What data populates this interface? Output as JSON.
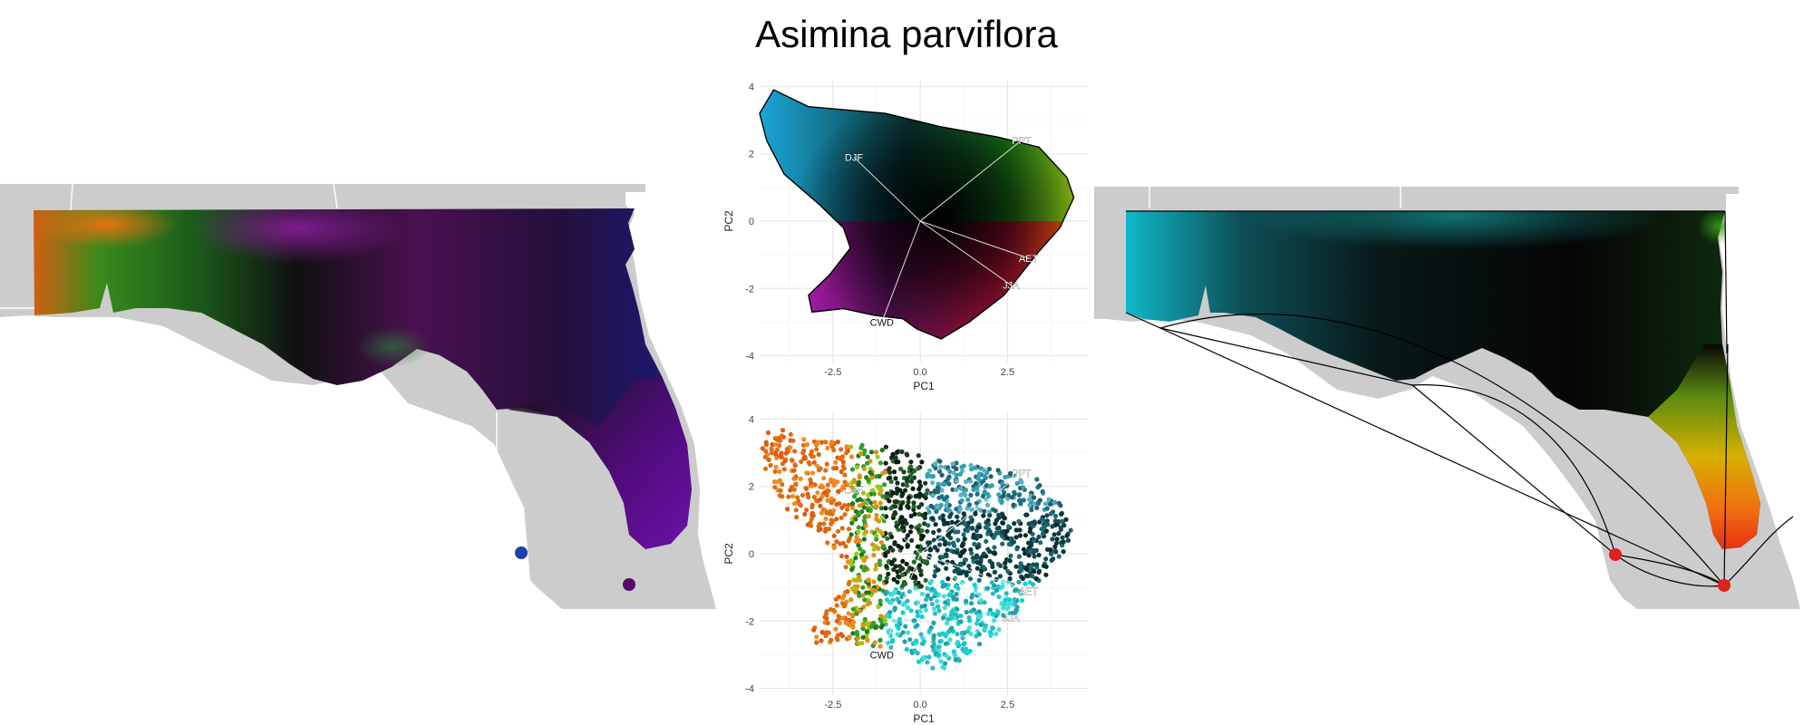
{
  "title": "Asimina parviflora",
  "colors": {
    "land": "#cccccc",
    "grid": "#e6e6e6",
    "background": "#ffffff"
  },
  "chart_data": [
    {
      "type": "scatter",
      "panel": "pca-continuous",
      "title": "",
      "xlabel": "PC1",
      "ylabel": "PC2",
      "xlim": [
        -4.6,
        4.8
      ],
      "ylim": [
        -4.2,
        4.2
      ],
      "x_ticks": [
        "-2.5",
        "0.0",
        "2.5"
      ],
      "x_tick_values": [
        -2.5,
        0.0,
        2.5
      ],
      "y_ticks": [
        "4",
        "2",
        "0",
        "-2",
        "-4"
      ],
      "y_tick_values": [
        4,
        2,
        0,
        -2,
        -4
      ],
      "grid": true,
      "loadings": [
        {
          "label": "DJF",
          "x": -1.9,
          "y": 1.9
        },
        {
          "label": "PPT",
          "x": 2.9,
          "y": 2.4
        },
        {
          "label": "AET",
          "x": 3.1,
          "y": -1.1
        },
        {
          "label": "JJA",
          "x": 2.6,
          "y": -1.9
        },
        {
          "label": "CWD",
          "x": -1.1,
          "y": -3.0
        }
      ]
    },
    {
      "type": "scatter",
      "panel": "pca-points",
      "title": "",
      "xlabel": "PC1",
      "ylabel": "PC2",
      "xlim": [
        -4.6,
        4.8
      ],
      "ylim": [
        -4.2,
        4.2
      ],
      "x_ticks": [
        "-2.5",
        "0.0",
        "2.5"
      ],
      "x_tick_values": [
        -2.5,
        0.0,
        2.5
      ],
      "y_ticks": [
        "4",
        "2",
        "0",
        "-2",
        "-4"
      ],
      "y_tick_values": [
        4,
        2,
        0,
        -2,
        -4
      ],
      "grid": true,
      "loadings": [
        {
          "label": "DJF",
          "x": -1.9,
          "y": 1.9
        },
        {
          "label": "PPT",
          "x": 2.9,
          "y": 2.4
        },
        {
          "label": "AET",
          "x": 3.1,
          "y": -1.1
        },
        {
          "label": "JJA",
          "x": 2.6,
          "y": -1.9
        },
        {
          "label": "CWD",
          "x": -1.1,
          "y": -3.0
        }
      ]
    }
  ],
  "maps": {
    "left": {
      "dot_colors": [
        "#1f3fb0",
        "#5a0a6e"
      ]
    },
    "right": {
      "dot_color": "#e0201c"
    }
  }
}
